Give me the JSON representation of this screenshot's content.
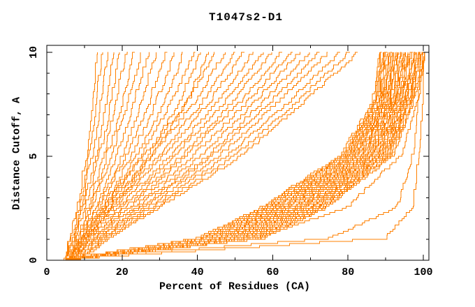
{
  "chart_data": {
    "type": "line",
    "title": "T1047s2-D1",
    "xlabel": "Percent of Residues (CA)",
    "ylabel": "Distance Cutoff, A",
    "xlim": [
      0,
      101.5
    ],
    "ylim": [
      0,
      10.33
    ],
    "x_major_ticks": [
      0,
      20,
      40,
      60,
      80,
      100
    ],
    "x_minor_ticks": [
      10,
      30,
      50,
      70,
      90
    ],
    "y_major_ticks": [
      0,
      5,
      10
    ],
    "y_minor_ticks": [
      1,
      2,
      3,
      4,
      6,
      7,
      8,
      9
    ],
    "grid": false,
    "legend": "none",
    "line_color": "#ff8000",
    "axis_color": "#000000",
    "background": "#ffffff",
    "estimation_note": "Each curve = one predicted model: percent of CA residues (x) under distance cutoff (y). Curves estimated from pixels as control points sampled at curve_knots_y.",
    "curve_knots_y": [
      0,
      1,
      2.5,
      5,
      7.5,
      10
    ],
    "curves": [
      [
        4.5,
        6,
        8,
        10.5,
        12,
        13
      ],
      [
        4.5,
        6.5,
        8.5,
        11,
        13,
        14.5
      ],
      [
        5,
        7,
        9,
        12,
        14,
        16
      ],
      [
        5,
        7,
        9.5,
        13,
        15.5,
        17.5
      ],
      [
        5,
        7.5,
        10,
        14,
        17,
        19
      ],
      [
        5.5,
        8,
        11,
        15,
        18,
        21
      ],
      [
        5.5,
        8,
        11.5,
        16,
        20,
        23
      ],
      [
        6,
        8.5,
        12,
        17,
        21.5,
        25
      ],
      [
        6,
        9,
        13,
        18.5,
        23,
        27
      ],
      [
        6,
        9,
        13.5,
        20,
        25,
        29
      ],
      [
        6.5,
        9.5,
        14,
        21,
        27,
        31.5
      ],
      [
        6.5,
        10,
        15,
        22.5,
        29,
        34
      ],
      [
        7,
        10,
        15.5,
        24,
        31,
        36.5
      ],
      [
        7,
        10.5,
        16,
        25,
        33,
        39
      ],
      [
        7,
        11,
        17,
        27,
        35,
        41
      ],
      [
        7.5,
        11,
        17.5,
        28,
        37,
        43
      ],
      [
        5,
        9,
        15,
        26,
        37,
        45
      ],
      [
        5.5,
        9.5,
        16,
        28,
        39,
        47.5
      ],
      [
        6,
        10,
        17,
        30,
        41,
        50
      ],
      [
        6,
        10.5,
        18,
        31,
        43,
        52.5
      ],
      [
        6.5,
        11,
        19,
        33,
        45,
        55
      ],
      [
        6.5,
        11.5,
        20,
        34,
        47,
        57.5
      ],
      [
        7,
        12,
        21,
        36,
        49,
        60
      ],
      [
        7,
        12.5,
        22,
        37,
        51,
        62.5
      ],
      [
        7.5,
        13,
        23,
        39,
        53,
        65
      ],
      [
        7.5,
        13.5,
        24,
        41,
        55,
        67.5
      ],
      [
        8,
        14,
        25,
        43,
        57,
        70
      ],
      [
        8,
        14.5,
        26,
        44,
        59,
        72.5
      ],
      [
        8.5,
        15,
        27,
        46,
        61,
        75
      ],
      [
        8.5,
        15.5,
        28,
        48,
        64,
        78
      ],
      [
        9,
        16,
        29,
        50,
        66,
        80.5
      ],
      [
        9,
        16.5,
        30,
        52,
        68,
        83
      ],
      [
        5.0,
        40.0,
        57.0,
        78.0,
        86.5,
        88.0
      ],
      [
        5.1,
        40.5,
        57.5,
        78.4,
        86.8,
        88.3
      ],
      [
        5.2,
        40.9,
        57.9,
        78.7,
        87.0,
        88.6
      ],
      [
        5.3,
        41.4,
        58.4,
        79.1,
        87.3,
        89.0
      ],
      [
        5.4,
        41.8,
        58.8,
        79.4,
        87.6,
        89.3
      ],
      [
        5.5,
        42.3,
        59.3,
        79.8,
        87.9,
        89.6
      ],
      [
        5.6,
        42.7,
        59.7,
        80.2,
        88.1,
        89.9
      ],
      [
        5.7,
        43.2,
        60.2,
        80.5,
        88.4,
        90.2
      ],
      [
        5.8,
        43.6,
        60.6,
        80.9,
        88.7,
        90.6
      ],
      [
        5.9,
        44.1,
        61.1,
        81.2,
        88.9,
        90.9
      ],
      [
        6.0,
        44.5,
        61.5,
        81.6,
        89.2,
        91.2
      ],
      [
        6.1,
        45.0,
        62.0,
        82.0,
        89.5,
        91.5
      ],
      [
        6.2,
        45.4,
        62.4,
        82.3,
        89.7,
        91.8
      ],
      [
        6.3,
        45.9,
        62.9,
        82.7,
        90.0,
        92.2
      ],
      [
        6.4,
        46.3,
        63.3,
        83.0,
        90.3,
        92.5
      ],
      [
        6.5,
        46.8,
        63.8,
        83.4,
        90.6,
        92.8
      ],
      [
        6.6,
        47.2,
        64.2,
        83.8,
        90.8,
        93.1
      ],
      [
        6.7,
        47.7,
        64.7,
        84.1,
        91.1,
        93.4
      ],
      [
        6.8,
        48.1,
        65.1,
        84.5,
        91.4,
        93.8
      ],
      [
        6.9,
        48.6,
        65.6,
        84.8,
        91.6,
        94.1
      ],
      [
        7.0,
        49.0,
        66.0,
        85.2,
        91.9,
        94.4
      ],
      [
        7.1,
        49.5,
        66.5,
        85.6,
        92.2,
        94.7
      ],
      [
        7.2,
        49.9,
        66.9,
        85.9,
        92.4,
        95.0
      ],
      [
        7.3,
        50.4,
        67.4,
        86.3,
        92.7,
        95.4
      ],
      [
        7.4,
        50.8,
        67.8,
        86.6,
        93.0,
        95.7
      ],
      [
        7.5,
        51.3,
        68.3,
        87.0,
        93.3,
        96.0
      ],
      [
        7.6,
        51.7,
        68.7,
        87.4,
        93.5,
        96.3
      ],
      [
        7.7,
        52.2,
        69.2,
        87.7,
        93.8,
        96.6
      ],
      [
        7.8,
        52.6,
        69.6,
        88.1,
        94.1,
        97.0
      ],
      [
        7.9,
        53.1,
        70.1,
        88.4,
        94.3,
        97.3
      ],
      [
        8.0,
        53.5,
        70.5,
        88.8,
        94.6,
        97.6
      ],
      [
        8.1,
        54.0,
        71.0,
        89.2,
        94.9,
        97.9
      ],
      [
        8.2,
        54.4,
        71.4,
        89.5,
        95.1,
        98.2
      ],
      [
        8.3,
        54.9,
        71.9,
        89.9,
        95.4,
        98.6
      ],
      [
        8.4,
        55.3,
        72.3,
        90.2,
        95.7,
        98.9
      ],
      [
        8.5,
        55.8,
        72.8,
        90.6,
        96.0,
        99.2
      ],
      [
        8.6,
        56.2,
        73.2,
        91.0,
        96.2,
        99.5
      ],
      [
        8.7,
        56.7,
        73.7,
        91.3,
        96.5,
        99.8
      ],
      [
        8.8,
        57.1,
        74.1,
        91.7,
        96.8,
        100.1
      ],
      [
        8.9,
        57.6,
        74.6,
        92.0,
        97.0,
        100.4
      ],
      [
        5,
        90,
        97,
        98.5,
        99.5,
        100
      ],
      [
        5,
        75,
        93,
        97,
        98.5,
        100
      ],
      [
        6,
        55,
        80,
        94,
        98,
        100
      ]
    ]
  }
}
